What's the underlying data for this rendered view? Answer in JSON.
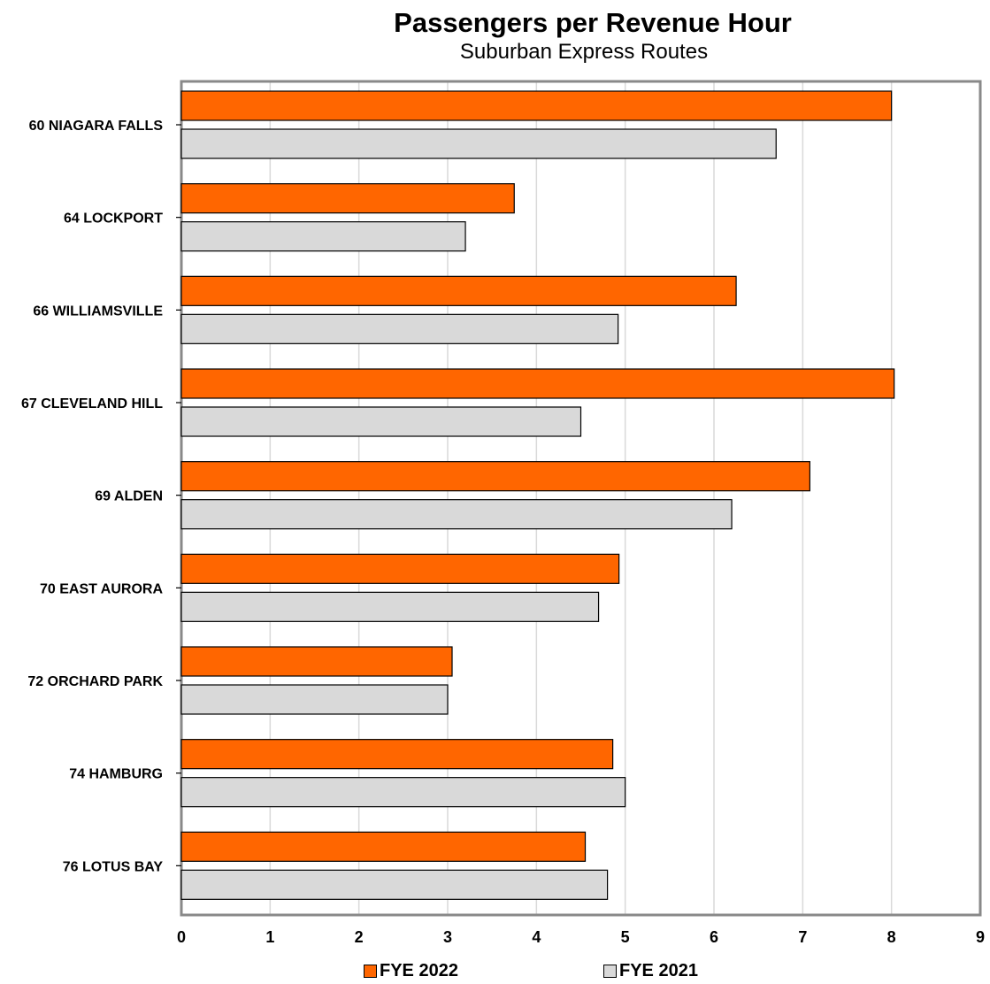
{
  "chart_data": {
    "type": "bar",
    "orientation": "horizontal",
    "title": "Passengers per Revenue Hour",
    "subtitle": "Suburban Express Routes",
    "categories": [
      "60 NIAGARA FALLS",
      "64 LOCKPORT",
      "66 WILLIAMSVILLE",
      "67 CLEVELAND HILL",
      "69 ALDEN",
      "70 EAST AURORA",
      "72 ORCHARD PARK",
      "74 HAMBURG",
      "76 LOTUS BAY"
    ],
    "series": [
      {
        "name": "FYE 2022",
        "color": "#ff6600",
        "values": [
          8.0,
          3.75,
          6.25,
          8.03,
          7.08,
          4.93,
          3.05,
          4.86,
          4.55
        ]
      },
      {
        "name": "FYE 2021",
        "color": "#d9d9d9",
        "values": [
          6.7,
          3.2,
          4.92,
          4.5,
          6.2,
          4.7,
          3.0,
          5.0,
          4.8
        ]
      }
    ],
    "xlim": [
      0,
      9
    ],
    "x_ticks": [
      "0",
      "1",
      "2",
      "3",
      "4",
      "5",
      "6",
      "7",
      "8",
      "9"
    ],
    "grid": "vertical",
    "legend": "bottom"
  }
}
